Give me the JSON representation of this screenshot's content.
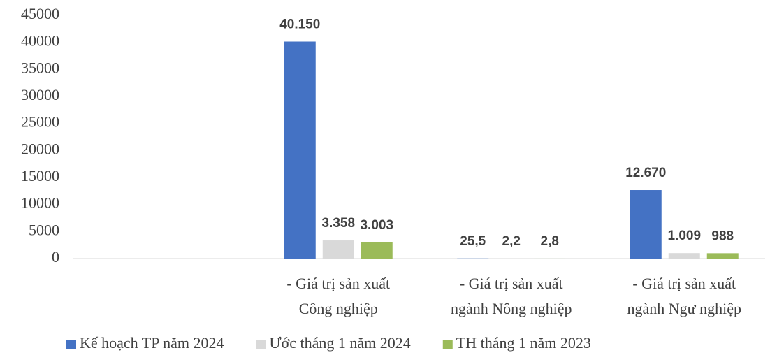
{
  "chart_data": {
    "type": "bar",
    "categories": [
      null,
      [
        "- Giá trị sản xuất",
        "Công nghiệp"
      ],
      [
        "- Giá trị sản xuất",
        "ngành Nông nghiệp"
      ],
      [
        "- Giá trị sản xuất",
        "ngành Ngư nghiệp"
      ]
    ],
    "series": [
      {
        "name": "Kế hoạch TP năm 2024",
        "color": "#4472c4",
        "values": [
          null,
          40150,
          25.5,
          12670
        ],
        "value_labels": [
          null,
          "40.150",
          "25,5",
          "12.670"
        ]
      },
      {
        "name": "Ước tháng 1 năm 2024",
        "color": "#d9d9d9",
        "values": [
          null,
          3358,
          2.2,
          1009
        ],
        "value_labels": [
          null,
          "3.358",
          "2,2",
          "1.009"
        ]
      },
      {
        "name": "TH tháng 1 năm 2023",
        "color": "#9bbb59",
        "values": [
          null,
          3003,
          2.8,
          988
        ],
        "value_labels": [
          null,
          "3.003",
          "2,8",
          "988"
        ]
      }
    ],
    "ylim": [
      0,
      45000
    ],
    "yticks": [
      0,
      5000,
      10000,
      15000,
      20000,
      25000,
      30000,
      35000,
      40000,
      45000
    ],
    "legend": "bottom"
  }
}
